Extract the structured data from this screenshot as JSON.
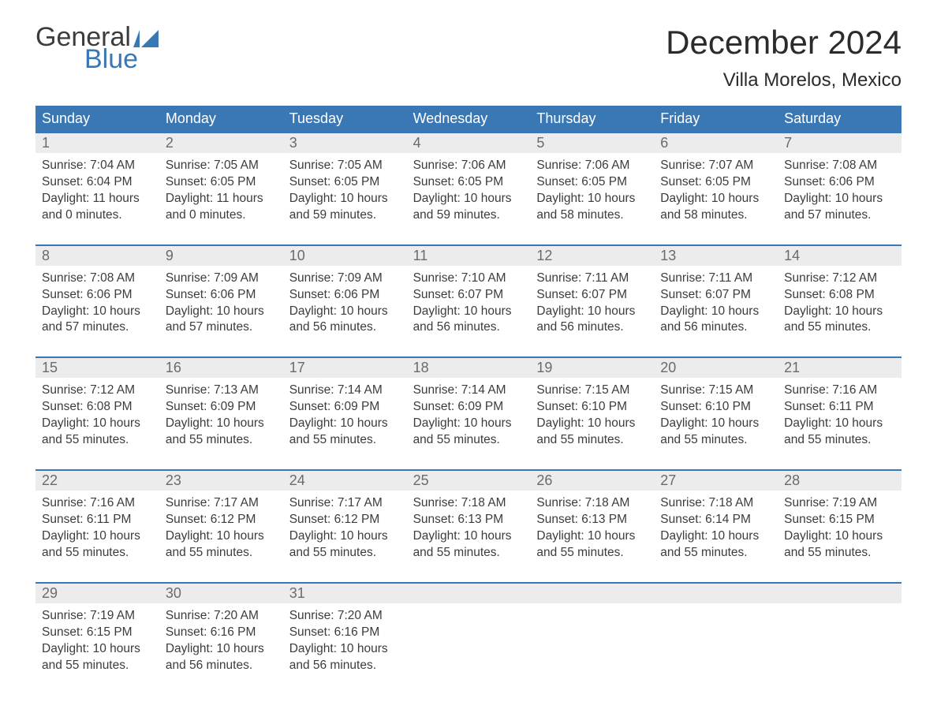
{
  "brand": {
    "word1": "General",
    "word2": "Blue",
    "flag_color": "#3a78b5"
  },
  "month_title": "December 2024",
  "location": "Villa Morelos, Mexico",
  "colors": {
    "header_bg": "#3a78b5",
    "header_text": "#ffffff",
    "daynum_bg": "#ececec",
    "daynum_text": "#6b6b6b",
    "body_text": "#3c3c3c",
    "rule": "#3a78b5"
  },
  "weekdays": [
    "Sunday",
    "Monday",
    "Tuesday",
    "Wednesday",
    "Thursday",
    "Friday",
    "Saturday"
  ],
  "days": [
    {
      "n": 1,
      "sunrise": "7:04 AM",
      "sunset": "6:04 PM",
      "dl_h": 11,
      "dl_m": 0
    },
    {
      "n": 2,
      "sunrise": "7:05 AM",
      "sunset": "6:05 PM",
      "dl_h": 11,
      "dl_m": 0
    },
    {
      "n": 3,
      "sunrise": "7:05 AM",
      "sunset": "6:05 PM",
      "dl_h": 10,
      "dl_m": 59
    },
    {
      "n": 4,
      "sunrise": "7:06 AM",
      "sunset": "6:05 PM",
      "dl_h": 10,
      "dl_m": 59
    },
    {
      "n": 5,
      "sunrise": "7:06 AM",
      "sunset": "6:05 PM",
      "dl_h": 10,
      "dl_m": 58
    },
    {
      "n": 6,
      "sunrise": "7:07 AM",
      "sunset": "6:05 PM",
      "dl_h": 10,
      "dl_m": 58
    },
    {
      "n": 7,
      "sunrise": "7:08 AM",
      "sunset": "6:06 PM",
      "dl_h": 10,
      "dl_m": 57
    },
    {
      "n": 8,
      "sunrise": "7:08 AM",
      "sunset": "6:06 PM",
      "dl_h": 10,
      "dl_m": 57
    },
    {
      "n": 9,
      "sunrise": "7:09 AM",
      "sunset": "6:06 PM",
      "dl_h": 10,
      "dl_m": 57
    },
    {
      "n": 10,
      "sunrise": "7:09 AM",
      "sunset": "6:06 PM",
      "dl_h": 10,
      "dl_m": 56
    },
    {
      "n": 11,
      "sunrise": "7:10 AM",
      "sunset": "6:07 PM",
      "dl_h": 10,
      "dl_m": 56
    },
    {
      "n": 12,
      "sunrise": "7:11 AM",
      "sunset": "6:07 PM",
      "dl_h": 10,
      "dl_m": 56
    },
    {
      "n": 13,
      "sunrise": "7:11 AM",
      "sunset": "6:07 PM",
      "dl_h": 10,
      "dl_m": 56
    },
    {
      "n": 14,
      "sunrise": "7:12 AM",
      "sunset": "6:08 PM",
      "dl_h": 10,
      "dl_m": 55
    },
    {
      "n": 15,
      "sunrise": "7:12 AM",
      "sunset": "6:08 PM",
      "dl_h": 10,
      "dl_m": 55
    },
    {
      "n": 16,
      "sunrise": "7:13 AM",
      "sunset": "6:09 PM",
      "dl_h": 10,
      "dl_m": 55
    },
    {
      "n": 17,
      "sunrise": "7:14 AM",
      "sunset": "6:09 PM",
      "dl_h": 10,
      "dl_m": 55
    },
    {
      "n": 18,
      "sunrise": "7:14 AM",
      "sunset": "6:09 PM",
      "dl_h": 10,
      "dl_m": 55
    },
    {
      "n": 19,
      "sunrise": "7:15 AM",
      "sunset": "6:10 PM",
      "dl_h": 10,
      "dl_m": 55
    },
    {
      "n": 20,
      "sunrise": "7:15 AM",
      "sunset": "6:10 PM",
      "dl_h": 10,
      "dl_m": 55
    },
    {
      "n": 21,
      "sunrise": "7:16 AM",
      "sunset": "6:11 PM",
      "dl_h": 10,
      "dl_m": 55
    },
    {
      "n": 22,
      "sunrise": "7:16 AM",
      "sunset": "6:11 PM",
      "dl_h": 10,
      "dl_m": 55
    },
    {
      "n": 23,
      "sunrise": "7:17 AM",
      "sunset": "6:12 PM",
      "dl_h": 10,
      "dl_m": 55
    },
    {
      "n": 24,
      "sunrise": "7:17 AM",
      "sunset": "6:12 PM",
      "dl_h": 10,
      "dl_m": 55
    },
    {
      "n": 25,
      "sunrise": "7:18 AM",
      "sunset": "6:13 PM",
      "dl_h": 10,
      "dl_m": 55
    },
    {
      "n": 26,
      "sunrise": "7:18 AM",
      "sunset": "6:13 PM",
      "dl_h": 10,
      "dl_m": 55
    },
    {
      "n": 27,
      "sunrise": "7:18 AM",
      "sunset": "6:14 PM",
      "dl_h": 10,
      "dl_m": 55
    },
    {
      "n": 28,
      "sunrise": "7:19 AM",
      "sunset": "6:15 PM",
      "dl_h": 10,
      "dl_m": 55
    },
    {
      "n": 29,
      "sunrise": "7:19 AM",
      "sunset": "6:15 PM",
      "dl_h": 10,
      "dl_m": 55
    },
    {
      "n": 30,
      "sunrise": "7:20 AM",
      "sunset": "6:16 PM",
      "dl_h": 10,
      "dl_m": 56
    },
    {
      "n": 31,
      "sunrise": "7:20 AM",
      "sunset": "6:16 PM",
      "dl_h": 10,
      "dl_m": 56
    }
  ],
  "labels": {
    "sunrise": "Sunrise:",
    "sunset": "Sunset:",
    "daylight": "Daylight:",
    "hours": "hours",
    "and": "and",
    "minutes": "minutes."
  },
  "typography": {
    "title_fontsize": 42,
    "location_fontsize": 24,
    "weekday_fontsize": 18,
    "daynum_fontsize": 18,
    "body_fontsize": 15.5
  }
}
